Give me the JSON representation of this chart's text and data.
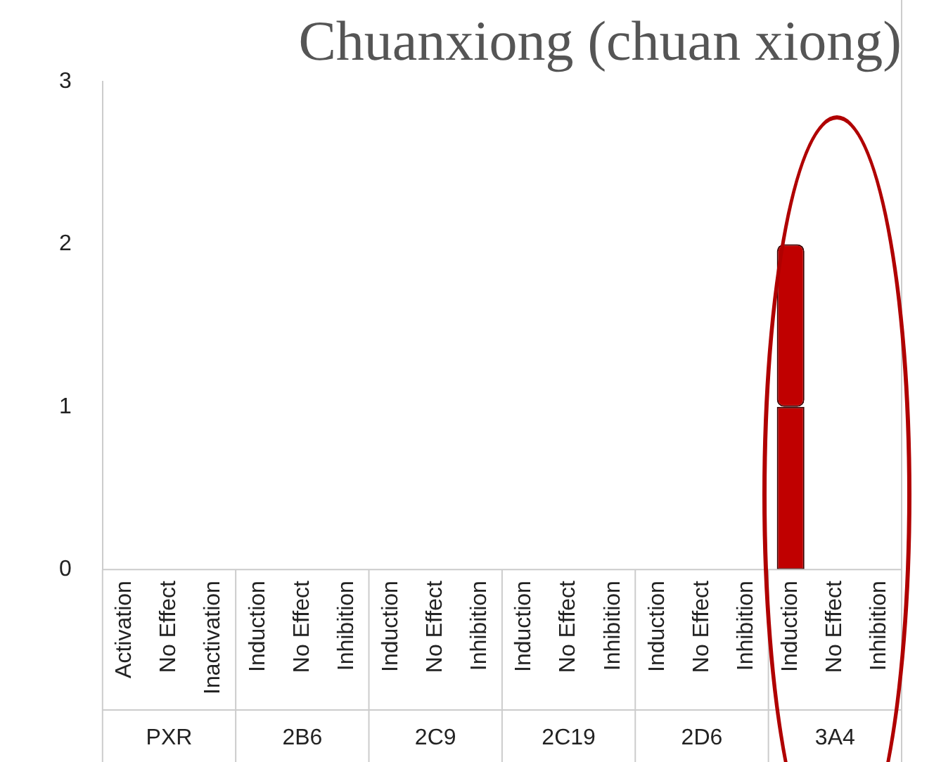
{
  "chart_data": {
    "type": "bar",
    "title": "Chuanxiong (chuan xiong)",
    "categories": [
      "Activation",
      "No Effect",
      "Inactivation",
      "Induction",
      "No Effect",
      "Inhibition",
      "Induction",
      "No Effect",
      "Inhibition",
      "Induction",
      "No Effect",
      "Inhibition",
      "Induction",
      "No Effect",
      "Inhibition",
      "Induction",
      "No Effect",
      "Inhibition"
    ],
    "series": [
      {
        "color": "#c00000",
        "values": [
          0,
          0,
          0,
          0,
          0,
          0,
          0,
          0,
          0,
          0,
          0,
          0,
          0,
          0,
          0,
          1,
          0,
          0
        ]
      },
      {
        "color": "#c00000",
        "values": [
          0,
          0,
          0,
          0,
          0,
          0,
          0,
          0,
          0,
          0,
          0,
          0,
          0,
          0,
          0,
          1,
          0,
          0
        ]
      }
    ],
    "stacked": true,
    "ylim": [
      0,
      3
    ],
    "yticks": [
      0,
      1,
      2,
      3
    ],
    "grid": false,
    "legend": false,
    "annotations": [
      "PXR",
      "2B6",
      "2C9",
      "2C19",
      "2D6",
      "3A4"
    ]
  }
}
